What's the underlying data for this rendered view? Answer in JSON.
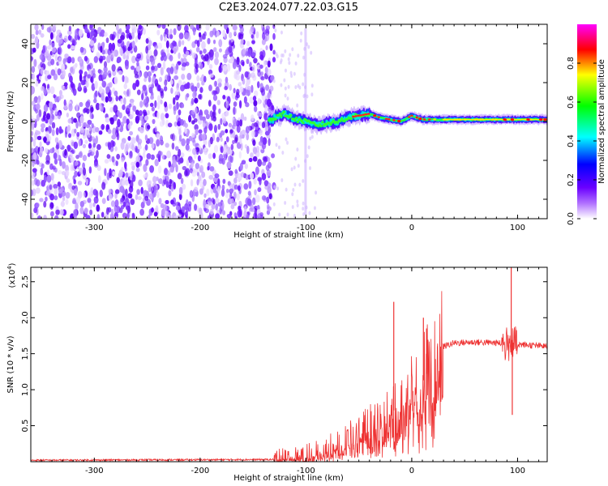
{
  "title": "C2E3.2024.077.22.03.G15",
  "chart_data": [
    {
      "type": "heatmap",
      "title": "C2E3.2024.077.22.03.G15",
      "xlabel": "Height of straight line (km)",
      "ylabel": "Frequency (Hz)",
      "xlim": [
        -360,
        128
      ],
      "ylim": [
        -50,
        50
      ],
      "x_ticks": [
        -300,
        -200,
        -100,
        0,
        100
      ],
      "x_tick_labels": [
        "-300",
        "-200",
        "-100",
        "0",
        "100"
      ],
      "y_ticks": [
        -40,
        -20,
        0,
        20,
        40
      ],
      "y_tick_labels": [
        "-40",
        "-20",
        "0",
        "20",
        "40"
      ],
      "colorbar": {
        "label": "Normalized spectral amplitude",
        "range": [
          0,
          1
        ],
        "ticks": [
          0.0,
          0.2,
          0.4,
          0.6,
          0.8
        ],
        "tick_labels": [
          "0.0",
          "0.2",
          "0.4",
          "0.6",
          "0.8"
        ],
        "colormap": [
          "#ff00ff",
          "#ff0000",
          "#ffff00",
          "#00ff00",
          "#00ffff",
          "#0000ff",
          "#8000ff",
          "#ffffff"
        ]
      },
      "signal_ridge": {
        "x": [
          -130,
          -120,
          -110,
          -100,
          -90,
          -80,
          -70,
          -60,
          -50,
          -40,
          -30,
          -20,
          -10,
          0,
          10,
          20,
          40,
          60,
          80,
          100,
          128
        ],
        "freq": [
          2,
          4,
          1,
          0,
          -2,
          -1,
          0,
          2,
          3,
          4,
          2,
          1,
          0,
          3,
          1,
          1,
          1,
          1,
          1,
          1,
          1
        ]
      },
      "noise_region_x": [
        -360,
        -130
      ]
    },
    {
      "type": "line",
      "xlabel": "Height of straight line (km)",
      "ylabel": "SNR (10 * v/v)",
      "y_scale_label": "(x10",
      "y_scale_exp": "4",
      "y_scale_close": ")",
      "xlim": [
        -360,
        128
      ],
      "ylim": [
        0,
        2.7
      ],
      "x_ticks": [
        -300,
        -200,
        -100,
        0,
        100
      ],
      "x_tick_labels": [
        "-300",
        "-200",
        "-100",
        "0",
        "100"
      ],
      "y_ticks": [
        0.5,
        1.0,
        1.5,
        2.0,
        2.5
      ],
      "y_tick_labels": [
        "0.5",
        "1.0",
        "1.5",
        "2.0",
        "2.5"
      ],
      "color": "#ee3333",
      "trend": {
        "x": [
          -360,
          -130,
          -110,
          -90,
          -70,
          -50,
          -30,
          -10,
          0,
          10,
          20,
          30,
          40,
          60,
          80,
          90,
          100,
          128
        ],
        "y": [
          0.02,
          0.03,
          0.05,
          0.1,
          0.2,
          0.35,
          0.55,
          0.8,
          0.95,
          1.1,
          1.4,
          1.6,
          1.65,
          1.66,
          1.65,
          1.63,
          1.63,
          1.6
        ]
      },
      "spikes": [
        {
          "x": -17,
          "y": 2.22
        },
        {
          "x": 11,
          "y": 2.0
        },
        {
          "x": 14,
          "y": 1.85
        },
        {
          "x": 94,
          "y": 2.7
        },
        {
          "x": 95,
          "y": 0.65
        }
      ]
    }
  ]
}
